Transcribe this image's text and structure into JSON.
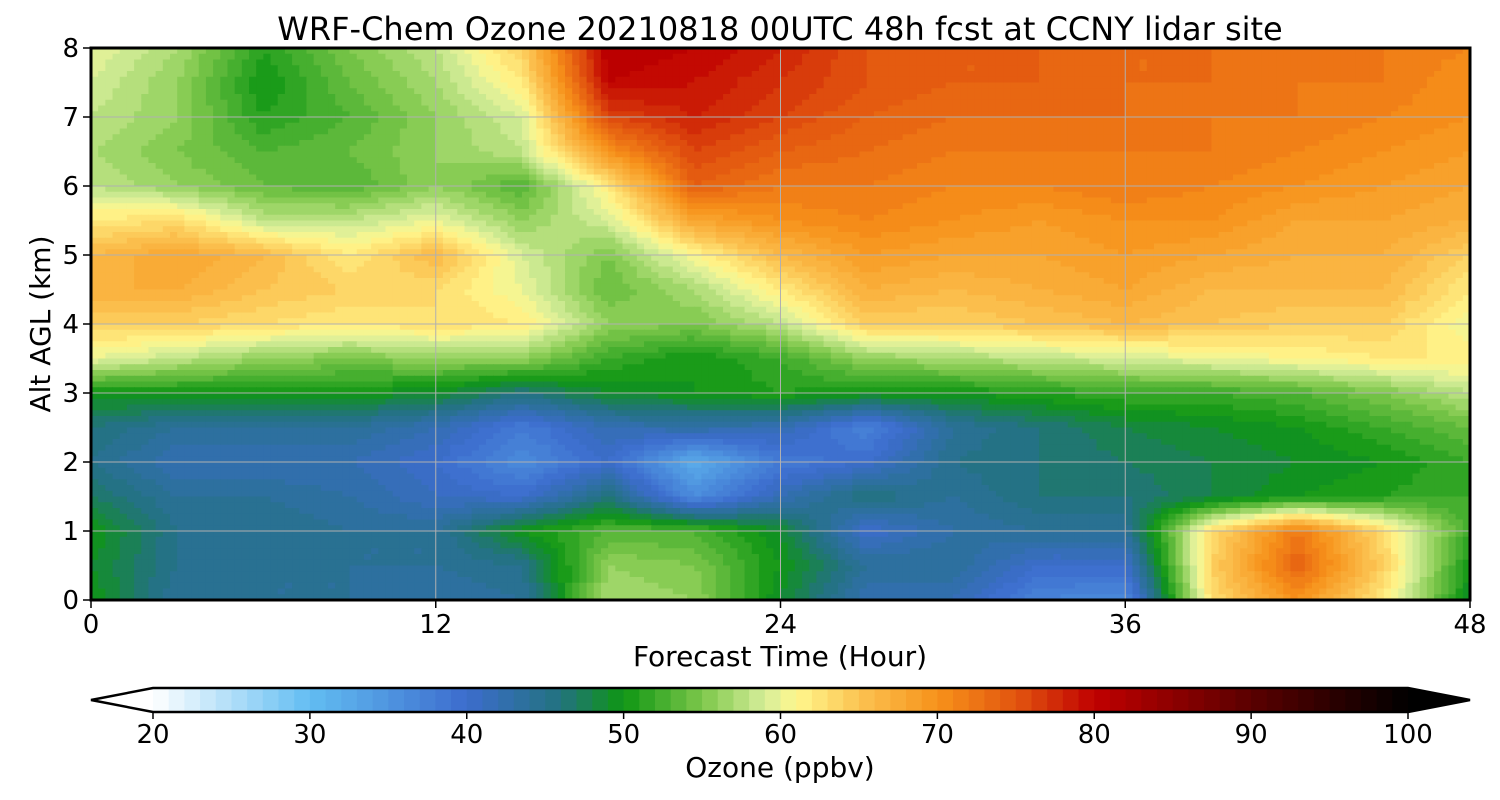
{
  "chart_data": {
    "type": "heatmap",
    "title": "WRF-Chem Ozone  20210818 00UTC 48h fcst at CCNY lidar site",
    "xlabel": "Forecast Time (Hour)",
    "ylabel": "Alt AGL (km)",
    "xlim": [
      0,
      48
    ],
    "ylim": [
      0,
      8
    ],
    "xticks": [
      0,
      12,
      24,
      36,
      48
    ],
    "yticks": [
      0,
      1,
      2,
      3,
      4,
      5,
      6,
      7,
      8
    ],
    "grid": true,
    "x": [
      0,
      3,
      6,
      9,
      12,
      15,
      18,
      21,
      24,
      27,
      30,
      33,
      36,
      39,
      42,
      45,
      48
    ],
    "y": [
      0,
      0.5,
      1,
      1.5,
      2,
      2.5,
      3,
      3.5,
      4,
      4.5,
      5,
      5.5,
      6,
      6.5,
      7,
      7.5,
      8
    ],
    "z": [
      [
        50,
        44,
        44,
        44,
        43,
        44,
        57,
        56,
        49,
        42,
        42,
        37,
        36,
        63,
        70,
        62,
        49
      ],
      [
        49,
        45,
        44,
        44,
        44,
        45,
        56,
        55,
        50,
        44,
        44,
        40,
        40,
        64,
        74,
        64,
        50
      ],
      [
        50,
        45,
        45,
        44,
        44,
        50,
        53,
        53,
        49,
        40,
        43,
        44,
        44,
        63,
        72,
        63,
        52
      ],
      [
        47,
        44,
        44,
        43,
        41,
        40,
        46,
        36,
        42,
        46,
        44,
        46,
        46,
        48,
        50,
        51,
        52
      ],
      [
        45,
        42,
        42,
        42,
        40,
        36,
        40,
        32,
        38,
        40,
        45,
        46,
        47,
        48,
        49,
        50,
        52
      ],
      [
        46,
        44,
        44,
        44,
        42,
        38,
        42,
        43,
        42,
        37,
        44,
        46,
        48,
        49,
        50,
        52,
        54
      ],
      [
        50,
        50,
        50,
        50,
        49,
        46,
        49,
        50,
        51,
        50,
        50,
        51,
        52,
        52,
        53,
        55,
        58
      ],
      [
        60,
        58,
        56,
        55,
        56,
        56,
        52,
        50,
        52,
        56,
        57,
        58,
        59,
        60,
        61,
        62,
        62
      ],
      [
        64,
        64,
        63,
        62,
        63,
        62,
        56,
        55,
        58,
        64,
        64,
        65,
        66,
        65,
        64,
        64,
        60
      ],
      [
        67,
        67,
        65,
        64,
        63,
        60,
        54,
        57,
        62,
        67,
        66,
        67,
        68,
        66,
        66,
        66,
        62
      ],
      [
        66,
        68,
        66,
        62,
        66,
        59,
        55,
        61,
        66,
        69,
        68,
        68,
        69,
        68,
        67,
        67,
        64
      ],
      [
        62,
        63,
        58,
        58,
        60,
        56,
        59,
        68,
        70,
        71,
        70,
        69,
        70,
        70,
        68,
        68,
        67
      ],
      [
        58,
        56,
        54,
        53,
        56,
        53,
        62,
        74,
        72,
        72,
        71,
        71,
        72,
        71,
        70,
        69,
        68
      ],
      [
        57,
        55,
        53,
        54,
        56,
        58,
        70,
        76,
        74,
        73,
        72,
        72,
        72,
        72,
        71,
        70,
        69
      ],
      [
        58,
        56,
        51,
        53,
        56,
        59,
        76,
        78,
        76,
        74,
        73,
        73,
        73,
        72,
        72,
        71,
        70
      ],
      [
        59,
        56,
        50,
        54,
        57,
        62,
        80,
        79,
        77,
        75,
        74,
        74,
        73,
        73,
        72,
        72,
        70
      ],
      [
        60,
        57,
        51,
        55,
        58,
        64,
        81,
        80,
        78,
        75,
        74,
        74,
        73,
        73,
        73,
        72,
        71
      ]
    ],
    "colorbar": {
      "label": "Ozone  (ppbv)",
      "min": 20,
      "max": 100,
      "ticks": [
        20,
        30,
        40,
        50,
        60,
        70,
        80,
        90,
        100
      ],
      "extend": "both",
      "step": 1,
      "colormap": [
        [
          20,
          "#ffffff"
        ],
        [
          30,
          "#62bdf2"
        ],
        [
          40,
          "#3c6ccd"
        ],
        [
          46,
          "#22727e"
        ],
        [
          50,
          "#0f9613"
        ],
        [
          55,
          "#7dc74a"
        ],
        [
          59,
          "#d6ee9a"
        ],
        [
          61,
          "#fff78e"
        ],
        [
          65,
          "#fbc351"
        ],
        [
          70,
          "#f7921a"
        ],
        [
          75,
          "#e2550f"
        ],
        [
          80,
          "#c00000"
        ],
        [
          90,
          "#5a0000"
        ],
        [
          100,
          "#000000"
        ]
      ]
    }
  }
}
